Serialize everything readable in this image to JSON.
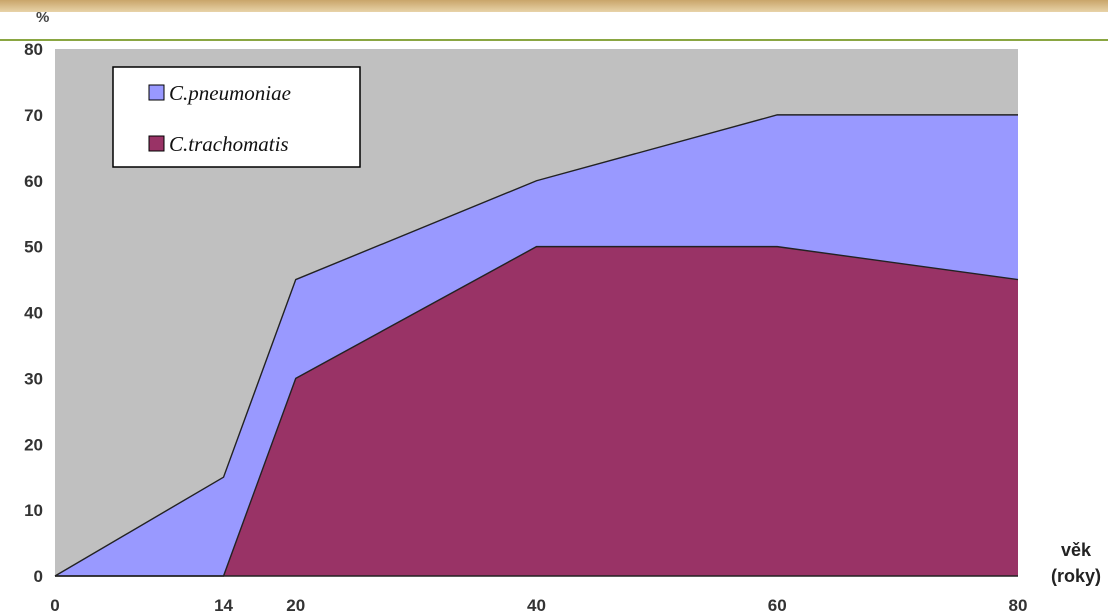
{
  "chart_data": {
    "type": "area",
    "stacked": false,
    "x": [
      "0",
      "14",
      "20",
      "40",
      "60",
      "80"
    ],
    "series": [
      {
        "name": "C.pneumoniae",
        "values": [
          0,
          15,
          45,
          60,
          70,
          70
        ],
        "color": "#9999ff"
      },
      {
        "name": "C.trachomatis",
        "values": [
          0,
          0,
          30,
          50,
          50,
          45
        ],
        "color": "#993366"
      }
    ],
    "ylim": [
      0,
      80
    ],
    "yticks": [
      0,
      10,
      20,
      30,
      40,
      50,
      60,
      70,
      80
    ],
    "ylabel": "%",
    "xlabel_line1": "věk",
    "xlabel_line2": "(roky)",
    "legend_position": "top-left",
    "plot_background": "#c0c0c0",
    "grid": false
  }
}
